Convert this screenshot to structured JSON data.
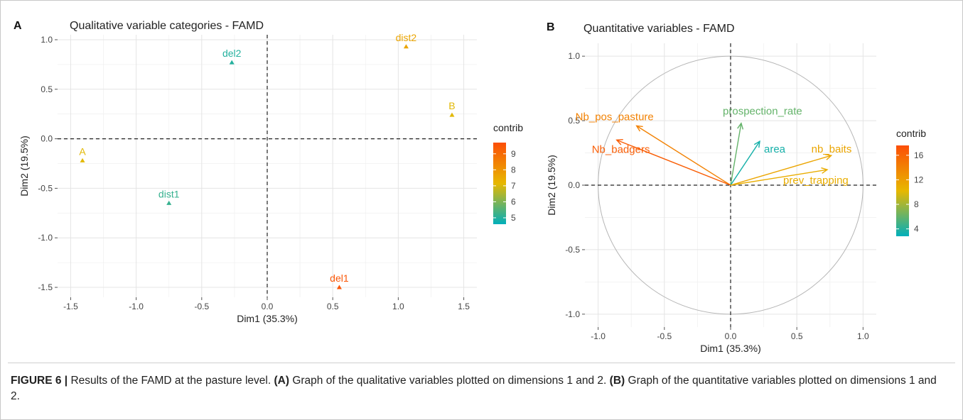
{
  "figure": {
    "caption_label": "FIGURE 6 |",
    "caption_1": " Results of the FAMD at the pasture level. ",
    "caption_a": "(A)",
    "caption_2": " Graph of the qualitative variables plotted on dimensions 1 and 2. ",
    "caption_b": "(B)",
    "caption_3": " Graph of the quantitative variables plotted on dimensions 1 and 2."
  },
  "chart_data": [
    {
      "panel": "A",
      "type": "scatter",
      "title": "Qualitative variable categories - FAMD",
      "xlabel": "Dim1 (35.3%)",
      "ylabel": "Dim2 (19.5%)",
      "xlim": [
        -1.6,
        1.6
      ],
      "ylim": [
        -1.6,
        1.05
      ],
      "xticks": [
        -1.5,
        -1.0,
        -0.5,
        0.0,
        0.5,
        1.0,
        1.5
      ],
      "xticklabels": [
        "-1.5",
        "-1.0",
        "-0.5",
        "0.0",
        "0.5",
        "1.0",
        "1.5"
      ],
      "yticks": [
        1.0,
        0.5,
        0.0,
        -0.5,
        -1.0,
        -1.5
      ],
      "yticklabels": [
        "1.0",
        "0.5",
        "0.0",
        "-0.5",
        "-1.0",
        "-1.5"
      ],
      "grid": true,
      "legend_position": "right",
      "points": [
        {
          "label": "dist2",
          "x": 1.06,
          "y": 0.93,
          "contrib": 7.6
        },
        {
          "label": "del2",
          "x": -0.27,
          "y": 0.77,
          "contrib": 5.0
        },
        {
          "label": "B",
          "x": 1.41,
          "y": 0.24,
          "contrib": 7.1
        },
        {
          "label": "A",
          "x": -1.41,
          "y": -0.22,
          "contrib": 7.1
        },
        {
          "label": "dist1",
          "x": -0.75,
          "y": -0.65,
          "contrib": 5.2
        },
        {
          "label": "del1",
          "x": 0.55,
          "y": -1.5,
          "contrib": 9.5
        }
      ],
      "colorbar": {
        "title": "contrib",
        "min": 4.6,
        "max": 9.7,
        "ticks": [
          9,
          8,
          7,
          6,
          5
        ],
        "ticklabels": [
          "9",
          "8",
          "7",
          "6",
          "5"
        ],
        "colors": [
          "#00afbb",
          "#e7b800",
          "#fc4e07"
        ]
      }
    },
    {
      "panel": "B",
      "type": "scatter",
      "title": "Quantitative variables - FAMD",
      "xlabel": "Dim1 (35.3%)",
      "ylabel": "Dim2 (19.5%)",
      "xlim": [
        -1.1,
        1.1
      ],
      "ylim": [
        -1.1,
        1.1
      ],
      "xticks": [
        -1.0,
        -0.5,
        0.0,
        0.5,
        1.0
      ],
      "xticklabels": [
        "-1.0",
        "-0.5",
        "0.0",
        "0.5",
        "1.0"
      ],
      "yticks": [
        1.0,
        0.5,
        0.0,
        -0.5,
        -1.0
      ],
      "yticklabels": [
        "1.0",
        "0.5",
        "0.0",
        "-0.5",
        "-1.0"
      ],
      "grid": true,
      "correlation_circle": true,
      "legend_position": "right",
      "arrows": [
        {
          "label": "Nb_pos_pasture",
          "x": -0.71,
          "y": 0.46,
          "contrib": 14.0
        },
        {
          "label": "prospection_rate",
          "x": 0.08,
          "y": 0.48,
          "contrib": 6.0
        },
        {
          "label": "Nb_badgers",
          "x": -0.86,
          "y": 0.35,
          "contrib": 16.5
        },
        {
          "label": "area",
          "x": 0.22,
          "y": 0.34,
          "contrib": 3.5
        },
        {
          "label": "nb_baits",
          "x": 0.76,
          "y": 0.23,
          "contrib": 11.5
        },
        {
          "label": "prev_trapping",
          "x": 0.73,
          "y": 0.12,
          "contrib": 11.0
        }
      ],
      "colorbar": {
        "title": "contrib",
        "min": 2.8,
        "max": 17.6,
        "ticks": [
          16,
          12,
          8,
          4
        ],
        "ticklabels": [
          "16",
          "12",
          "8",
          "4"
        ],
        "colors": [
          "#00afbb",
          "#e7b800",
          "#fc4e07"
        ]
      }
    }
  ]
}
